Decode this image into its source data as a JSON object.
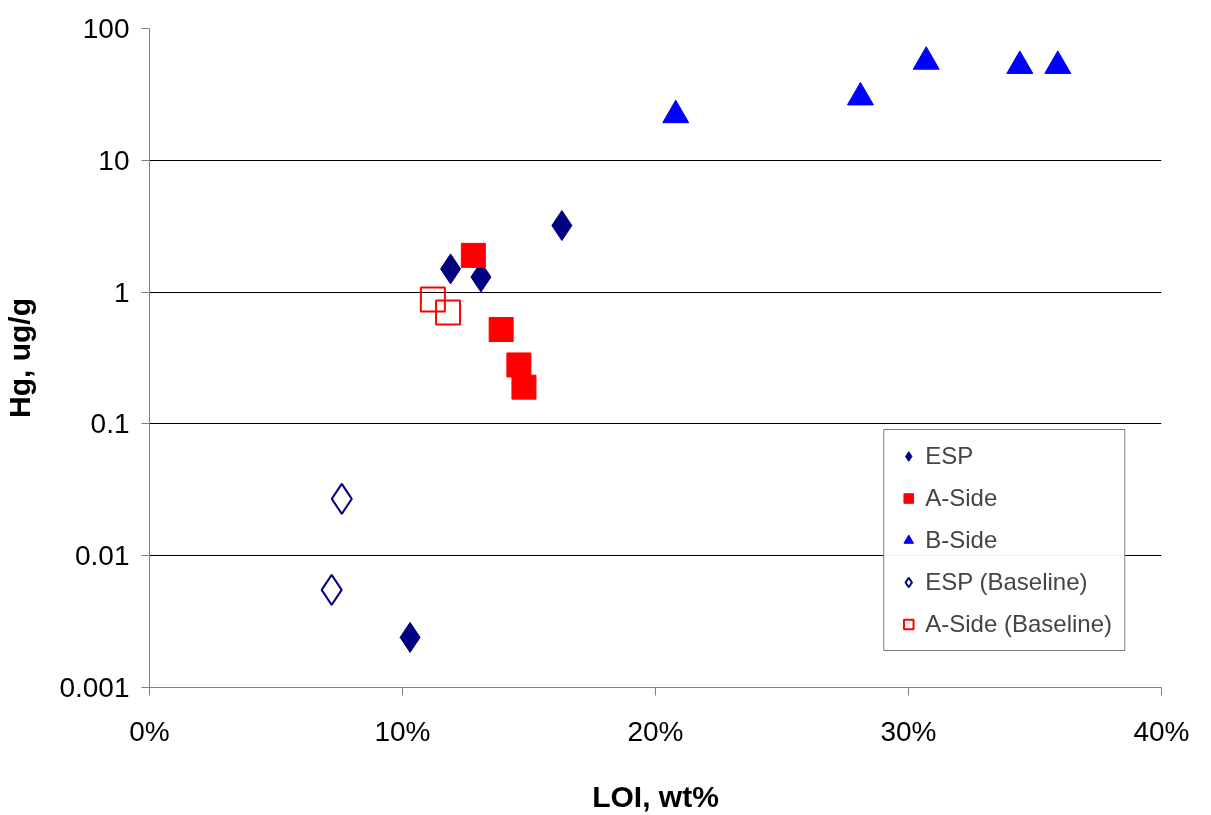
{
  "chart_data": {
    "type": "scatter",
    "xlabel": "LOI, wt%",
    "ylabel": "Hg, ug/g",
    "log": "y",
    "grid": "y",
    "legend": "bottom right",
    "xlim": [
      0,
      40
    ],
    "xticks": [
      {
        "value": 0,
        "label": "0%"
      },
      {
        "value": 10,
        "label": "10%"
      },
      {
        "value": 20,
        "label": "20%"
      },
      {
        "value": 30,
        "label": "30%"
      },
      {
        "value": 40,
        "label": "40%"
      }
    ],
    "ylim": [
      0.001,
      100
    ],
    "yticks": [
      0.001,
      0.01,
      0.1,
      1,
      10,
      100
    ],
    "series": [
      {
        "name": "ESP",
        "color": "#000080",
        "marker": "diamond",
        "x": [
          10.3,
          11.9,
          13.1,
          16.3
        ],
        "values": [
          0.0024,
          1.5,
          1.3,
          3.2
        ]
      },
      {
        "name": "A-Side",
        "color": "#ff0000",
        "marker": "square",
        "x": [
          12.8,
          13.9,
          14.6,
          14.8
        ],
        "values": [
          1.9,
          0.52,
          0.28,
          0.19
        ]
      },
      {
        "name": "B-Side",
        "color": "#0000ff",
        "marker": "triangle",
        "x": [
          20.8,
          28.1,
          30.7,
          34.4,
          35.9
        ],
        "values": [
          22,
          30,
          56,
          52,
          52
        ]
      },
      {
        "name": "ESP (Baseline)",
        "color": "#000080",
        "marker": "diamond_open",
        "x": [
          7.6,
          7.2
        ],
        "values": [
          0.027,
          0.0055
        ]
      },
      {
        "name": "A-Side (Baseline)",
        "color": "#ff0000",
        "marker": "square_open",
        "x": [
          11.2,
          11.8
        ],
        "values": [
          0.88,
          0.7
        ]
      }
    ]
  }
}
